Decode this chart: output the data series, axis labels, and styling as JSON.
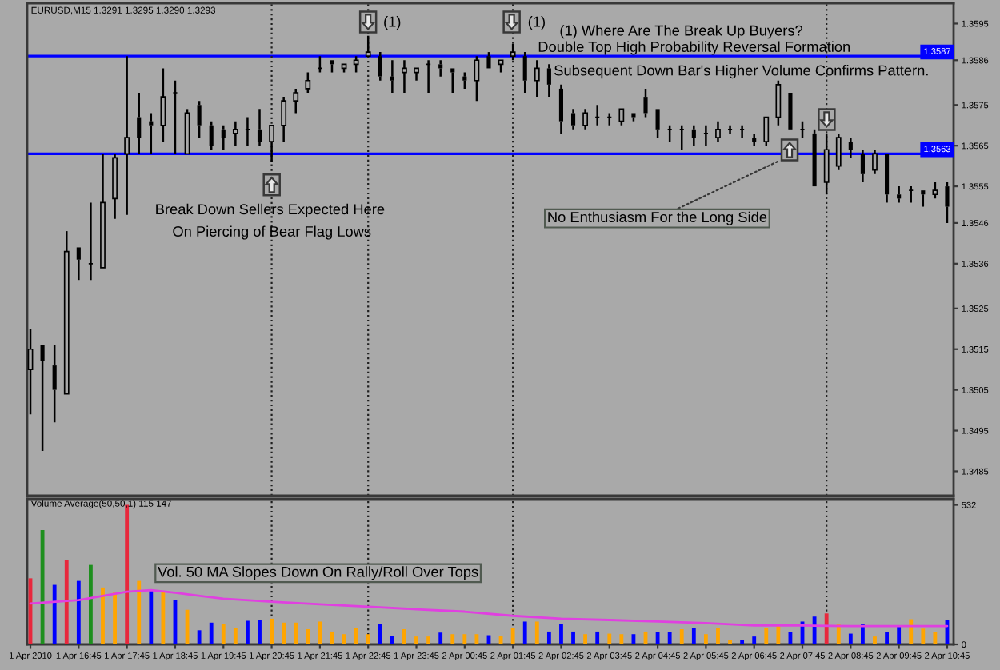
{
  "chart_data": [
    {
      "type": "candlestick",
      "title": "EURUSD,M15 1.3291 1.3295 1.3290 1.3293",
      "color": "#000000",
      "x": [
        "2010-04-01T15:45",
        "2010-04-01T16:00",
        "2010-04-01T16:15",
        "2010-04-01T16:30",
        "2010-04-01T16:45",
        "2010-04-01T17:00",
        "2010-04-01T17:15",
        "2010-04-01T17:30",
        "2010-04-01T17:45",
        "2010-04-01T18:00",
        "2010-04-01T18:15",
        "2010-04-01T18:30",
        "2010-04-01T18:45",
        "2010-04-01T19:00",
        "2010-04-01T19:15",
        "2010-04-01T19:30",
        "2010-04-01T19:45",
        "2010-04-01T20:00",
        "2010-04-01T20:15",
        "2010-04-01T20:30",
        "2010-04-01T20:45",
        "2010-04-01T21:00",
        "2010-04-01T21:15",
        "2010-04-01T21:30",
        "2010-04-01T21:45",
        "2010-04-01T22:00",
        "2010-04-01T22:15",
        "2010-04-01T22:30",
        "2010-04-01T22:45",
        "2010-04-01T23:00",
        "2010-04-01T23:15",
        "2010-04-01T23:30",
        "2010-04-01T23:45",
        "2010-04-02T00:00",
        "2010-04-02T00:15",
        "2010-04-02T00:30",
        "2010-04-02T00:45",
        "2010-04-02T01:00",
        "2010-04-02T01:15",
        "2010-04-02T01:30",
        "2010-04-02T01:45",
        "2010-04-02T02:00",
        "2010-04-02T02:15",
        "2010-04-02T02:30",
        "2010-04-02T02:45",
        "2010-04-02T03:00",
        "2010-04-02T03:15",
        "2010-04-02T03:30",
        "2010-04-02T03:45",
        "2010-04-02T04:00",
        "2010-04-02T04:15",
        "2010-04-02T04:30",
        "2010-04-02T04:45",
        "2010-04-02T05:00",
        "2010-04-02T05:15",
        "2010-04-02T05:30",
        "2010-04-02T05:45",
        "2010-04-02T06:00",
        "2010-04-02T06:15",
        "2010-04-02T06:30",
        "2010-04-02T06:45",
        "2010-04-02T07:00",
        "2010-04-02T07:15",
        "2010-04-02T07:30",
        "2010-04-02T07:45",
        "2010-04-02T08:00",
        "2010-04-02T08:15",
        "2010-04-02T08:30",
        "2010-04-02T08:45",
        "2010-04-02T09:00",
        "2010-04-02T09:15",
        "2010-04-02T09:30",
        "2010-04-02T09:45",
        "2010-04-02T10:00",
        "2010-04-02T10:15",
        "2010-04-02T10:30",
        "2010-04-02T10:45"
      ],
      "ohlc": [
        [
          1.351,
          1.352,
          1.3499,
          1.3515
        ],
        [
          1.3516,
          1.3516,
          1.349,
          1.3512
        ],
        [
          1.3511,
          1.3516,
          1.3497,
          1.3505
        ],
        [
          1.3504,
          1.3544,
          1.3504,
          1.3539
        ],
        [
          1.354,
          1.354,
          1.3532,
          1.3537
        ],
        [
          1.3536,
          1.3551,
          1.3532,
          1.3536
        ],
        [
          1.3535,
          1.3563,
          1.3535,
          1.3551
        ],
        [
          1.3552,
          1.3563,
          1.3547,
          1.3562
        ],
        [
          1.3563,
          1.3587,
          1.3548,
          1.3567
        ],
        [
          1.3572,
          1.3578,
          1.3563,
          1.3567
        ],
        [
          1.3571,
          1.3573,
          1.3563,
          1.357
        ],
        [
          1.357,
          1.3584,
          1.3566,
          1.3577
        ],
        [
          1.3578,
          1.3581,
          1.3563,
          1.3578
        ],
        [
          1.3563,
          1.3574,
          1.3563,
          1.3573
        ],
        [
          1.3575,
          1.3576,
          1.3567,
          1.357
        ],
        [
          1.357,
          1.3571,
          1.3564,
          1.3565
        ],
        [
          1.3569,
          1.357,
          1.3564,
          1.3567
        ],
        [
          1.3568,
          1.3571,
          1.3565,
          1.3569
        ],
        [
          1.3569,
          1.3572,
          1.3565,
          1.3569
        ],
        [
          1.3569,
          1.3574,
          1.3565,
          1.3566
        ],
        [
          1.3566,
          1.357,
          1.3561,
          1.357
        ],
        [
          1.357,
          1.3577,
          1.3566,
          1.3576
        ],
        [
          1.3576,
          1.3579,
          1.3573,
          1.3578
        ],
        [
          1.3579,
          1.3583,
          1.3578,
          1.3581
        ],
        [
          1.3584,
          1.3587,
          1.3583,
          1.3584
        ],
        [
          1.3586,
          1.3586,
          1.3583,
          1.3585
        ],
        [
          1.3584,
          1.3585,
          1.3583,
          1.3585
        ],
        [
          1.3585,
          1.3587,
          1.3583,
          1.3586
        ],
        [
          1.3587,
          1.3592,
          1.3587,
          1.3588
        ],
        [
          1.3587,
          1.3588,
          1.3581,
          1.3582
        ],
        [
          1.3582,
          1.3586,
          1.3578,
          1.3581
        ],
        [
          1.3583,
          1.3586,
          1.3578,
          1.3584
        ],
        [
          1.3583,
          1.3584,
          1.3581,
          1.3584
        ],
        [
          1.3585,
          1.3586,
          1.3578,
          1.3585
        ],
        [
          1.3585,
          1.3586,
          1.3582,
          1.3584
        ],
        [
          1.3584,
          1.3584,
          1.3578,
          1.3583
        ],
        [
          1.3582,
          1.3583,
          1.3579,
          1.3581
        ],
        [
          1.3581,
          1.3587,
          1.3576,
          1.3586
        ],
        [
          1.3587,
          1.3588,
          1.3584,
          1.3584
        ],
        [
          1.3585,
          1.3586,
          1.3583,
          1.3586
        ],
        [
          1.3587,
          1.359,
          1.3586,
          1.3588
        ],
        [
          1.3587,
          1.3588,
          1.3578,
          1.3581
        ],
        [
          1.3581,
          1.3586,
          1.3577,
          1.3584
        ],
        [
          1.3584,
          1.3585,
          1.3577,
          1.358
        ],
        [
          1.3579,
          1.358,
          1.3568,
          1.3571
        ],
        [
          1.3573,
          1.3574,
          1.3569,
          1.357
        ],
        [
          1.357,
          1.3574,
          1.3569,
          1.3573
        ],
        [
          1.3572,
          1.3575,
          1.357,
          1.3572
        ],
        [
          1.3572,
          1.3573,
          1.357,
          1.3572
        ],
        [
          1.3571,
          1.3574,
          1.357,
          1.3574
        ],
        [
          1.3573,
          1.3573,
          1.3571,
          1.3572
        ],
        [
          1.3577,
          1.3579,
          1.3572,
          1.3573
        ],
        [
          1.3574,
          1.3574,
          1.3567,
          1.3569
        ],
        [
          1.3569,
          1.357,
          1.3566,
          1.3569
        ],
        [
          1.3569,
          1.357,
          1.3564,
          1.3569
        ],
        [
          1.3569,
          1.357,
          1.3565,
          1.3567
        ],
        [
          1.3568,
          1.357,
          1.3565,
          1.3568
        ],
        [
          1.3567,
          1.3571,
          1.3566,
          1.3569
        ],
        [
          1.3569,
          1.357,
          1.3568,
          1.3569
        ],
        [
          1.3569,
          1.357,
          1.3567,
          1.3569
        ],
        [
          1.3567,
          1.3568,
          1.3565,
          1.3566
        ],
        [
          1.3566,
          1.3572,
          1.3565,
          1.3572
        ],
        [
          1.3572,
          1.3581,
          1.357,
          1.358
        ],
        [
          1.3578,
          1.3578,
          1.3569,
          1.3569
        ],
        [
          1.3569,
          1.3571,
          1.3567,
          1.3569
        ],
        [
          1.3568,
          1.3569,
          1.3555,
          1.3555
        ],
        [
          1.3556,
          1.3568,
          1.3553,
          1.3564
        ],
        [
          1.356,
          1.3568,
          1.3559,
          1.3567
        ],
        [
          1.3566,
          1.3567,
          1.3562,
          1.3564
        ],
        [
          1.3563,
          1.3564,
          1.3556,
          1.3558
        ],
        [
          1.3559,
          1.3564,
          1.3558,
          1.3563
        ],
        [
          1.3563,
          1.3563,
          1.3551,
          1.3553
        ],
        [
          1.3553,
          1.3555,
          1.3551,
          1.3552
        ],
        [
          1.3554,
          1.3555,
          1.3551,
          1.3554
        ],
        [
          1.3554,
          1.3554,
          1.355,
          1.3553
        ],
        [
          1.3553,
          1.3556,
          1.3552,
          1.3554
        ],
        [
          1.3555,
          1.3556,
          1.3546,
          1.355
        ]
      ],
      "xlim": [
        "2010-04-01T15:41",
        "2010-04-02T10:53"
      ],
      "ylim": [
        1.3479,
        1.36
      ],
      "yticks": [
        1.3595,
        1.3586,
        1.3575,
        1.3565,
        1.3555,
        1.3546,
        1.3536,
        1.3525,
        1.3515,
        1.3505,
        1.3495,
        1.3485
      ],
      "tick_labels": "y",
      "ref_lines": [
        {
          "axis": "y",
          "value": 1.3587,
          "label": "1.3587",
          "color": "#0000ff",
          "line_style": "solid"
        },
        {
          "axis": "y",
          "value": 1.3563,
          "label": "1.3563",
          "color": "#0000ff",
          "line_style": "solid"
        },
        {
          "axis": "x",
          "value": "2010-04-01T20:45",
          "color": "#202020",
          "line_style": "dotted"
        },
        {
          "axis": "x",
          "value": "2010-04-01T22:45",
          "color": "#202020",
          "line_style": "dotted"
        },
        {
          "axis": "x",
          "value": "2010-04-02T01:45",
          "color": "#202020",
          "line_style": "dotted"
        },
        {
          "axis": "x",
          "value": "2010-04-02T08:15",
          "color": "#202020",
          "line_style": "dotted"
        }
      ],
      "annotations": [
        "(1)",
        "(1)",
        "(1) Where Are The Break Up Buyers?",
        "Double Top High Probability Reversal Formation",
        "Subsequent Down Bar's Higher Volume Confirms Pattern.",
        "Break Down Sellers Expected Here",
        "On Piercing of Bear Flag Lows",
        "No Enthusiasm For the Long Side"
      ]
    },
    {
      "type": "bar",
      "title": "Volume Average(50,50,1) 115 147",
      "x": [
        "2010-04-01T15:45",
        "2010-04-01T16:00",
        "2010-04-01T16:15",
        "2010-04-01T16:30",
        "2010-04-01T16:45",
        "2010-04-01T17:00",
        "2010-04-01T17:15",
        "2010-04-01T17:30",
        "2010-04-01T17:45",
        "2010-04-01T18:00",
        "2010-04-01T18:15",
        "2010-04-01T18:30",
        "2010-04-01T18:45",
        "2010-04-01T19:00",
        "2010-04-01T19:15",
        "2010-04-01T19:30",
        "2010-04-01T19:45",
        "2010-04-01T20:00",
        "2010-04-01T20:15",
        "2010-04-01T20:30",
        "2010-04-01T20:45",
        "2010-04-01T21:00",
        "2010-04-01T21:15",
        "2010-04-01T21:30",
        "2010-04-01T21:45",
        "2010-04-01T22:00",
        "2010-04-01T22:15",
        "2010-04-01T22:30",
        "2010-04-01T22:45",
        "2010-04-01T23:00",
        "2010-04-01T23:15",
        "2010-04-01T23:30",
        "2010-04-01T23:45",
        "2010-04-02T00:00",
        "2010-04-02T00:15",
        "2010-04-02T00:30",
        "2010-04-02T00:45",
        "2010-04-02T01:00",
        "2010-04-02T01:15",
        "2010-04-02T01:30",
        "2010-04-02T01:45",
        "2010-04-02T02:00",
        "2010-04-02T02:15",
        "2010-04-02T02:30",
        "2010-04-02T02:45",
        "2010-04-02T03:00",
        "2010-04-02T03:15",
        "2010-04-02T03:30",
        "2010-04-02T03:45",
        "2010-04-02T04:00",
        "2010-04-02T04:15",
        "2010-04-02T04:30",
        "2010-04-02T04:45",
        "2010-04-02T05:00",
        "2010-04-02T05:15",
        "2010-04-02T05:30",
        "2010-04-02T05:45",
        "2010-04-02T06:00",
        "2010-04-02T06:15",
        "2010-04-02T06:30",
        "2010-04-02T06:45",
        "2010-04-02T07:00",
        "2010-04-02T07:15",
        "2010-04-02T07:30",
        "2010-04-02T07:45",
        "2010-04-02T08:00",
        "2010-04-02T08:15",
        "2010-04-02T08:30",
        "2010-04-02T08:45",
        "2010-04-02T09:00",
        "2010-04-02T09:15",
        "2010-04-02T09:30",
        "2010-04-02T09:45",
        "2010-04-02T10:00",
        "2010-04-02T10:15",
        "2010-04-02T10:30",
        "2010-04-02T10:45"
      ],
      "series": [
        {
          "type": "bar",
          "values": [
            252,
            436,
            227,
            322,
            242,
            303,
            217,
            198,
            532,
            242,
            204,
            204,
            170,
            132,
            54,
            83,
            77,
            64,
            90,
            94,
            98,
            83,
            83,
            58,
            87,
            49,
            39,
            62,
            39,
            79,
            33,
            58,
            30,
            30,
            45,
            39,
            39,
            39,
            35,
            33,
            62,
            87,
            87,
            49,
            79,
            49,
            39,
            49,
            41,
            39,
            39,
            49,
            47,
            46,
            58,
            64,
            39,
            64,
            16,
            16,
            30,
            62,
            70,
            47,
            87,
            106,
            118,
            77,
            41,
            77,
            30,
            46,
            73,
            96,
            60,
            46,
            94
          ],
          "colors": [
            "#e8283c",
            "#1e8f1e",
            "#0000ff",
            "#e8283c",
            "#0000ff",
            "#1e8f1e",
            "#ffa500",
            "#ffa500",
            "#e8283c",
            "#ffa500",
            "#0000ff",
            "#ffa500",
            "#0000ff",
            "#ffa500",
            "#0000ff",
            "#0000ff",
            "#ffa500",
            "#ffa500",
            "#0000ff",
            "#0000ff",
            "#ffa500",
            "#ffa500",
            "#ffa500",
            "#ffa500",
            "#ffa500",
            "#ffa500",
            "#ffa500",
            "#ffa500",
            "#ffa500",
            "#0000ff",
            "#0000ff",
            "#ffa500",
            "#ffa500",
            "#ffa500",
            "#0000ff",
            "#ffa500",
            "#ffa500",
            "#ffa500",
            "#0000ff",
            "#ffa500",
            "#ffa500",
            "#0000ff",
            "#ffa500",
            "#0000ff",
            "#0000ff",
            "#0000ff",
            "#ffa500",
            "#0000ff",
            "#ffa500",
            "#ffa500",
            "#0000ff",
            "#ffa500",
            "#0000ff",
            "#0000ff",
            "#ffa500",
            "#0000ff",
            "#ffa500",
            "#ffa500",
            "#ffa500",
            "#0000ff",
            "#0000ff",
            "#ffa500",
            "#ffa500",
            "#0000ff",
            "#0000ff",
            "#0000ff",
            "#e8283c",
            "#ffa500",
            "#0000ff",
            "#0000ff",
            "#ffa500",
            "#0000ff",
            "#0000ff",
            "#ffa500",
            "#ffa500",
            "#ffa500",
            "#0000ff"
          ]
        },
        {
          "type": "line",
          "color": "#e040e0",
          "x": [
            "2010-04-01T15:45",
            "2010-04-01T16:45",
            "2010-04-01T17:45",
            "2010-04-01T18:15",
            "2010-04-01T18:45",
            "2010-04-01T19:45",
            "2010-04-01T20:45",
            "2010-04-01T21:45",
            "2010-04-01T22:45",
            "2010-04-01T23:45",
            "2010-04-02T00:45",
            "2010-04-02T01:45",
            "2010-04-02T02:45",
            "2010-04-02T03:45",
            "2010-04-02T04:45",
            "2010-04-02T05:45",
            "2010-04-02T06:45",
            "2010-04-02T07:45",
            "2010-04-02T08:45",
            "2010-04-02T09:45",
            "2010-04-02T10:45"
          ],
          "values": [
            156,
            169,
            201,
            207,
            197,
            174,
            163,
            153,
            144,
            134,
            125,
            109,
            98,
            93,
            87,
            81,
            72,
            72,
            70,
            70,
            70
          ]
        }
      ],
      "xlim": [
        "2010-04-01T15:41",
        "2010-04-02T10:53"
      ],
      "ylim": [
        0,
        555
      ],
      "yticks": [
        0,
        532
      ],
      "xticks": [
        {
          "value": "2010-04-01T15:45",
          "label": "1 Apr 2010"
        },
        {
          "value": "2010-04-01T16:45",
          "label": "1 Apr 16:45"
        },
        {
          "value": "2010-04-01T17:45",
          "label": "1 Apr 17:45"
        },
        {
          "value": "2010-04-01T18:45",
          "label": "1 Apr 18:45"
        },
        {
          "value": "2010-04-01T19:45",
          "label": "1 Apr 19:45"
        },
        {
          "value": "2010-04-01T20:45",
          "label": "1 Apr 20:45"
        },
        {
          "value": "2010-04-01T21:45",
          "label": "1 Apr 21:45"
        },
        {
          "value": "2010-04-01T22:45",
          "label": "1 Apr 22:45"
        },
        {
          "value": "2010-04-01T23:45",
          "label": "1 Apr 23:45"
        },
        {
          "value": "2010-04-02T00:45",
          "label": "2 Apr 00:45"
        },
        {
          "value": "2010-04-02T01:45",
          "label": "2 Apr 01:45"
        },
        {
          "value": "2010-04-02T02:45",
          "label": "2 Apr 02:45"
        },
        {
          "value": "2010-04-02T03:45",
          "label": "2 Apr 03:45"
        },
        {
          "value": "2010-04-02T04:45",
          "label": "2 Apr 04:45"
        },
        {
          "value": "2010-04-02T05:45",
          "label": "2 Apr 05:45"
        },
        {
          "value": "2010-04-02T06:45",
          "label": "2 Apr 06:45"
        },
        {
          "value": "2010-04-02T07:45",
          "label": "2 Apr 07:45"
        },
        {
          "value": "2010-04-02T08:45",
          "label": "2 Apr 08:45"
        },
        {
          "value": "2010-04-02T09:45",
          "label": "2 Apr 09:45"
        },
        {
          "value": "2010-04-02T10:45",
          "label": "2 Apr 10:45"
        }
      ],
      "ref_lines": [
        {
          "axis": "x",
          "value": "2010-04-01T20:45",
          "color": "#202020",
          "line_style": "dotted"
        },
        {
          "axis": "x",
          "value": "2010-04-01T22:45",
          "color": "#202020",
          "line_style": "dotted"
        },
        {
          "axis": "x",
          "value": "2010-04-02T01:45",
          "color": "#202020",
          "line_style": "dotted"
        },
        {
          "axis": "x",
          "value": "2010-04-02T08:15",
          "color": "#202020",
          "line_style": "dotted"
        }
      ],
      "annotations": [
        "Vol. 50 MA Slopes Down On Rally/Roll Over Tops"
      ]
    }
  ]
}
